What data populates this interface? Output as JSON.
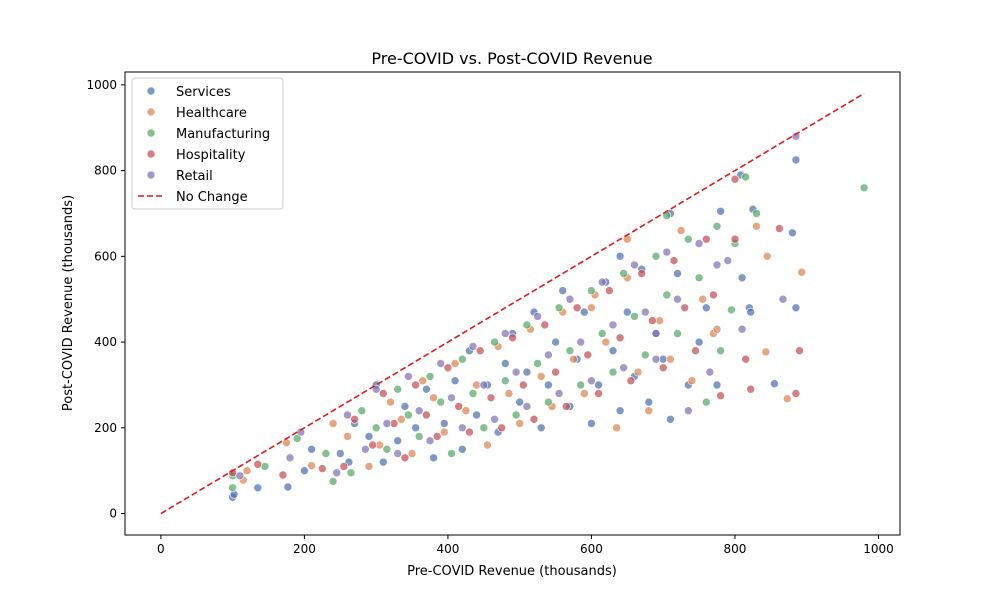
{
  "chart_data": {
    "type": "scatter",
    "title": "Pre-COVID vs. Post-COVID Revenue",
    "xlabel": "Pre-COVID Revenue (thousands)",
    "ylabel": "Post-COVID Revenue (thousands)",
    "xlim": [
      -50,
      1030
    ],
    "ylim": [
      -50,
      1030
    ],
    "xticks": [
      0,
      200,
      400,
      600,
      800,
      1000
    ],
    "yticks": [
      0,
      200,
      400,
      600,
      800,
      1000
    ],
    "grid": false,
    "legend_position": "top-left",
    "series": [
      {
        "name": "Services",
        "color": "#4c72b0",
        "points": [
          [
            100,
            38
          ],
          [
            102,
            45
          ],
          [
            135,
            60
          ],
          [
            177,
            62
          ],
          [
            200,
            100
          ],
          [
            210,
            150
          ],
          [
            250,
            140
          ],
          [
            262,
            120
          ],
          [
            270,
            210
          ],
          [
            290,
            180
          ],
          [
            300,
            300
          ],
          [
            310,
            120
          ],
          [
            330,
            170
          ],
          [
            340,
            250
          ],
          [
            355,
            200
          ],
          [
            370,
            290
          ],
          [
            380,
            130
          ],
          [
            395,
            210
          ],
          [
            410,
            310
          ],
          [
            420,
            150
          ],
          [
            430,
            380
          ],
          [
            440,
            230
          ],
          [
            455,
            300
          ],
          [
            470,
            190
          ],
          [
            480,
            350
          ],
          [
            490,
            420
          ],
          [
            500,
            260
          ],
          [
            510,
            330
          ],
          [
            520,
            470
          ],
          [
            530,
            200
          ],
          [
            540,
            300
          ],
          [
            550,
            400
          ],
          [
            560,
            520
          ],
          [
            570,
            250
          ],
          [
            580,
            360
          ],
          [
            590,
            470
          ],
          [
            600,
            210
          ],
          [
            610,
            300
          ],
          [
            620,
            540
          ],
          [
            630,
            380
          ],
          [
            640,
            240
          ],
          [
            650,
            470
          ],
          [
            660,
            320
          ],
          [
            670,
            570
          ],
          [
            680,
            260
          ],
          [
            690,
            420
          ],
          [
            700,
            360
          ],
          [
            710,
            220
          ],
          [
            720,
            560
          ],
          [
            735,
            300
          ],
          [
            750,
            400
          ],
          [
            760,
            480
          ],
          [
            775,
            300
          ],
          [
            780,
            705
          ],
          [
            808,
            790
          ],
          [
            810,
            550
          ],
          [
            820,
            480
          ],
          [
            822,
            470
          ],
          [
            825,
            710
          ],
          [
            855,
            303
          ],
          [
            880,
            655
          ],
          [
            885,
            825
          ],
          [
            885,
            480
          ],
          [
            710,
            700
          ],
          [
            640,
            600
          ]
        ]
      },
      {
        "name": "Healthcare",
        "color": "#dd8452",
        "points": [
          [
            115,
            78
          ],
          [
            120,
            100
          ],
          [
            175,
            165
          ],
          [
            210,
            112
          ],
          [
            240,
            210
          ],
          [
            260,
            180
          ],
          [
            290,
            110
          ],
          [
            305,
            160
          ],
          [
            320,
            260
          ],
          [
            335,
            220
          ],
          [
            350,
            140
          ],
          [
            365,
            310
          ],
          [
            380,
            270
          ],
          [
            395,
            190
          ],
          [
            410,
            350
          ],
          [
            425,
            240
          ],
          [
            440,
            300
          ],
          [
            455,
            160
          ],
          [
            470,
            390
          ],
          [
            485,
            280
          ],
          [
            500,
            210
          ],
          [
            515,
            430
          ],
          [
            530,
            320
          ],
          [
            545,
            250
          ],
          [
            560,
            470
          ],
          [
            575,
            360
          ],
          [
            590,
            280
          ],
          [
            605,
            510
          ],
          [
            620,
            400
          ],
          [
            635,
            200
          ],
          [
            650,
            550
          ],
          [
            665,
            330
          ],
          [
            680,
            240
          ],
          [
            695,
            450
          ],
          [
            710,
            360
          ],
          [
            725,
            660
          ],
          [
            740,
            310
          ],
          [
            755,
            500
          ],
          [
            770,
            420
          ],
          [
            775,
            430
          ],
          [
            830,
            670
          ],
          [
            843,
            377
          ],
          [
            845,
            600
          ],
          [
            873,
            268
          ],
          [
            893,
            563
          ],
          [
            600,
            480
          ],
          [
            650,
            640
          ]
        ]
      },
      {
        "name": "Manufacturing",
        "color": "#55a868",
        "points": [
          [
            100,
            60
          ],
          [
            100,
            88
          ],
          [
            145,
            110
          ],
          [
            190,
            175
          ],
          [
            230,
            140
          ],
          [
            240,
            75
          ],
          [
            265,
            95
          ],
          [
            280,
            240
          ],
          [
            300,
            200
          ],
          [
            315,
            150
          ],
          [
            330,
            290
          ],
          [
            345,
            230
          ],
          [
            360,
            180
          ],
          [
            375,
            320
          ],
          [
            390,
            260
          ],
          [
            405,
            140
          ],
          [
            420,
            360
          ],
          [
            435,
            280
          ],
          [
            450,
            200
          ],
          [
            465,
            400
          ],
          [
            480,
            310
          ],
          [
            495,
            230
          ],
          [
            510,
            440
          ],
          [
            525,
            350
          ],
          [
            540,
            260
          ],
          [
            555,
            480
          ],
          [
            570,
            380
          ],
          [
            585,
            300
          ],
          [
            600,
            520
          ],
          [
            615,
            420
          ],
          [
            630,
            330
          ],
          [
            645,
            560
          ],
          [
            660,
            460
          ],
          [
            675,
            370
          ],
          [
            690,
            600
          ],
          [
            705,
            510
          ],
          [
            720,
            420
          ],
          [
            735,
            640
          ],
          [
            750,
            550
          ],
          [
            760,
            260
          ],
          [
            775,
            670
          ],
          [
            780,
            380
          ],
          [
            795,
            475
          ],
          [
            800,
            630
          ],
          [
            815,
            785
          ],
          [
            830,
            700
          ],
          [
            980,
            760
          ],
          [
            705,
            695
          ]
        ]
      },
      {
        "name": "Hospitality",
        "color": "#c44e52",
        "points": [
          [
            100,
            95
          ],
          [
            135,
            115
          ],
          [
            170,
            90
          ],
          [
            225,
            105
          ],
          [
            255,
            110
          ],
          [
            270,
            220
          ],
          [
            295,
            160
          ],
          [
            310,
            280
          ],
          [
            325,
            210
          ],
          [
            340,
            130
          ],
          [
            355,
            300
          ],
          [
            370,
            230
          ],
          [
            385,
            180
          ],
          [
            400,
            340
          ],
          [
            415,
            250
          ],
          [
            430,
            190
          ],
          [
            445,
            380
          ],
          [
            460,
            270
          ],
          [
            475,
            200
          ],
          [
            490,
            410
          ],
          [
            505,
            300
          ],
          [
            520,
            220
          ],
          [
            535,
            440
          ],
          [
            550,
            330
          ],
          [
            565,
            250
          ],
          [
            580,
            480
          ],
          [
            595,
            370
          ],
          [
            610,
            280
          ],
          [
            625,
            520
          ],
          [
            640,
            410
          ],
          [
            655,
            310
          ],
          [
            670,
            560
          ],
          [
            685,
            450
          ],
          [
            700,
            340
          ],
          [
            715,
            590
          ],
          [
            730,
            480
          ],
          [
            745,
            380
          ],
          [
            760,
            640
          ],
          [
            770,
            510
          ],
          [
            780,
            275
          ],
          [
            800,
            780
          ],
          [
            815,
            360
          ],
          [
            822,
            290
          ],
          [
            862,
            665
          ],
          [
            885,
            280
          ],
          [
            890,
            380
          ],
          [
            800,
            640
          ]
        ]
      },
      {
        "name": "Retail",
        "color": "#8172b3",
        "points": [
          [
            110,
            88
          ],
          [
            180,
            130
          ],
          [
            195,
            190
          ],
          [
            245,
            95
          ],
          [
            260,
            230
          ],
          [
            285,
            150
          ],
          [
            300,
            290
          ],
          [
            315,
            210
          ],
          [
            330,
            140
          ],
          [
            345,
            320
          ],
          [
            360,
            240
          ],
          [
            375,
            170
          ],
          [
            390,
            350
          ],
          [
            405,
            270
          ],
          [
            420,
            200
          ],
          [
            435,
            390
          ],
          [
            450,
            300
          ],
          [
            465,
            220
          ],
          [
            480,
            420
          ],
          [
            495,
            330
          ],
          [
            510,
            250
          ],
          [
            525,
            460
          ],
          [
            540,
            370
          ],
          [
            555,
            280
          ],
          [
            570,
            500
          ],
          [
            585,
            400
          ],
          [
            600,
            310
          ],
          [
            615,
            540
          ],
          [
            630,
            440
          ],
          [
            645,
            340
          ],
          [
            660,
            580
          ],
          [
            675,
            470
          ],
          [
            690,
            360
          ],
          [
            705,
            610
          ],
          [
            720,
            500
          ],
          [
            735,
            240
          ],
          [
            750,
            630
          ],
          [
            765,
            330
          ],
          [
            775,
            580
          ],
          [
            790,
            590
          ],
          [
            810,
            430
          ],
          [
            867,
            500
          ],
          [
            885,
            880
          ],
          [
            690,
            420
          ]
        ]
      }
    ],
    "reference_line": {
      "name": "No Change",
      "color": "#e41a1c",
      "style": "dashed",
      "x": [
        0,
        980
      ],
      "y": [
        0,
        980
      ]
    }
  }
}
